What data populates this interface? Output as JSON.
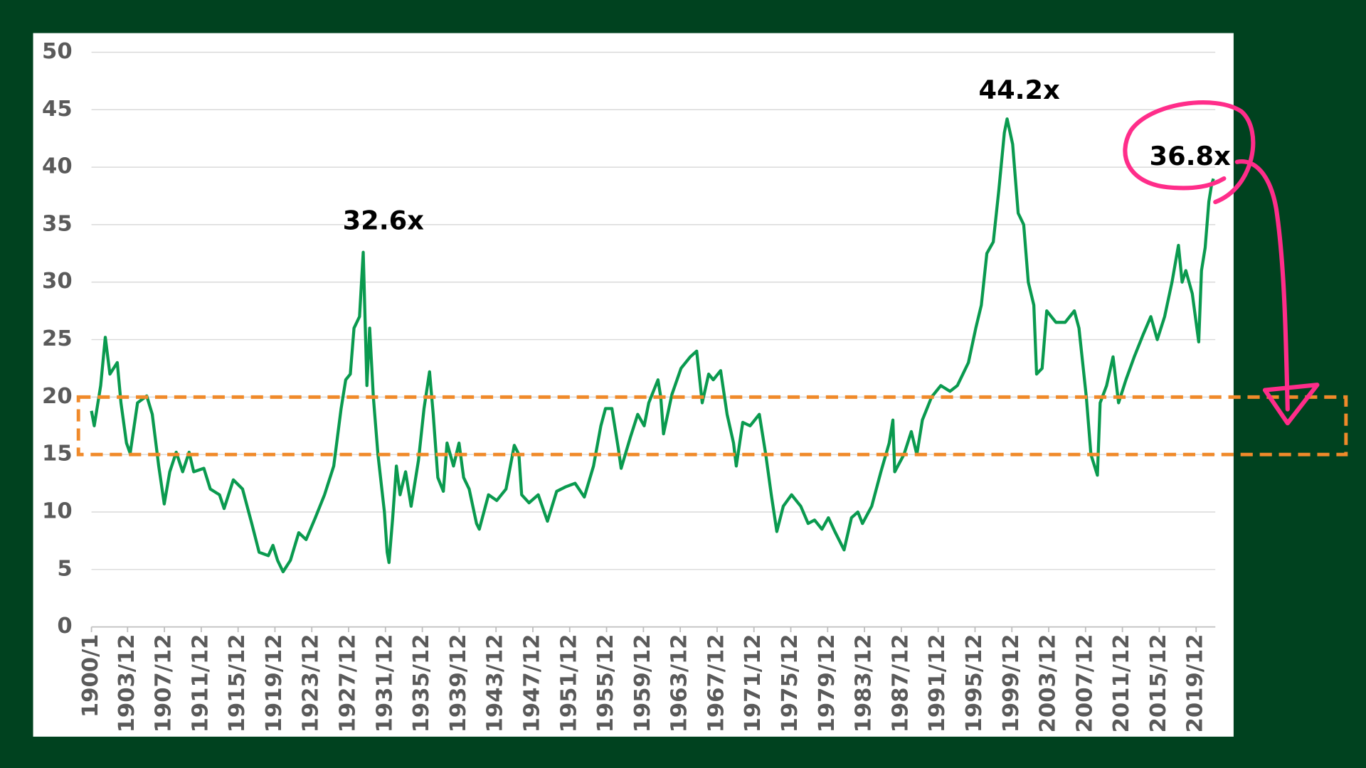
{
  "chart_data": {
    "type": "line",
    "color": "#0a9a4f",
    "grid": true,
    "xlim": [
      1900,
      2022
    ],
    "ylim": [
      0,
      50
    ],
    "yticks": [
      0,
      5,
      10,
      15,
      20,
      25,
      30,
      35,
      40,
      45,
      50
    ],
    "xticks": [
      {
        "value": 1900.0,
        "label": "1900/1"
      },
      {
        "value": 1903.917,
        "label": "1903/12"
      },
      {
        "value": 1907.917,
        "label": "1907/12"
      },
      {
        "value": 1911.917,
        "label": "1911/12"
      },
      {
        "value": 1915.917,
        "label": "1915/12"
      },
      {
        "value": 1919.917,
        "label": "1919/12"
      },
      {
        "value": 1923.917,
        "label": "1923/12"
      },
      {
        "value": 1927.917,
        "label": "1927/12"
      },
      {
        "value": 1931.917,
        "label": "1931/12"
      },
      {
        "value": 1935.917,
        "label": "1935/12"
      },
      {
        "value": 1939.917,
        "label": "1939/12"
      },
      {
        "value": 1943.917,
        "label": "1943/12"
      },
      {
        "value": 1947.917,
        "label": "1947/12"
      },
      {
        "value": 1951.917,
        "label": "1951/12"
      },
      {
        "value": 1955.917,
        "label": "1955/12"
      },
      {
        "value": 1959.917,
        "label": "1959/12"
      },
      {
        "value": 1963.917,
        "label": "1963/12"
      },
      {
        "value": 1967.917,
        "label": "1967/12"
      },
      {
        "value": 1971.917,
        "label": "1971/12"
      },
      {
        "value": 1975.917,
        "label": "1975/12"
      },
      {
        "value": 1979.917,
        "label": "1979/12"
      },
      {
        "value": 1983.917,
        "label": "1983/12"
      },
      {
        "value": 1987.917,
        "label": "1987/12"
      },
      {
        "value": 1991.917,
        "label": "1991/12"
      },
      {
        "value": 1995.917,
        "label": "1995/12"
      },
      {
        "value": 1999.917,
        "label": "1999/12"
      },
      {
        "value": 2003.917,
        "label": "2003/12"
      },
      {
        "value": 2007.917,
        "label": "2007/12"
      },
      {
        "value": 2011.917,
        "label": "2011/12"
      },
      {
        "value": 2015.917,
        "label": "2015/12"
      },
      {
        "value": 2019.917,
        "label": "2019/12"
      }
    ],
    "highlight_band": [
      15,
      20
    ],
    "annotations": [
      "32.6x",
      "44.2x",
      "36.8x"
    ],
    "x": [
      1900.0,
      1900.3,
      1901.0,
      1901.5,
      1902.0,
      1902.8,
      1903.2,
      1903.8,
      1904.2,
      1905.0,
      1906.0,
      1906.6,
      1907.3,
      1907.9,
      1908.5,
      1909.2,
      1909.9,
      1910.6,
      1911.1,
      1912.2,
      1912.9,
      1913.9,
      1914.4,
      1915.4,
      1916.4,
      1917.4,
      1918.2,
      1919.2,
      1919.7,
      1920.2,
      1920.8,
      1921.6,
      1922.5,
      1923.3,
      1924.3,
      1925.3,
      1926.3,
      1927.1,
      1927.6,
      1928.1,
      1928.5,
      1929.1,
      1929.5,
      1929.9,
      1930.2,
      1930.6,
      1931.1,
      1931.8,
      1932.1,
      1932.3,
      1932.7,
      1933.1,
      1933.5,
      1934.1,
      1934.7,
      1935.5,
      1936.1,
      1936.7,
      1937.1,
      1937.6,
      1938.2,
      1938.6,
      1939.3,
      1939.9,
      1940.4,
      1941.0,
      1941.8,
      1942.1,
      1943.1,
      1944.0,
      1945.0,
      1945.9,
      1946.4,
      1946.7,
      1947.5,
      1948.5,
      1949.5,
      1950.5,
      1951.5,
      1952.5,
      1953.5,
      1954.5,
      1955.3,
      1955.8,
      1956.5,
      1957.2,
      1957.5,
      1958.5,
      1959.3,
      1960.0,
      1960.5,
      1961.5,
      1961.8,
      1962.1,
      1963.0,
      1964.0,
      1965.0,
      1965.7,
      1966.3,
      1967.0,
      1967.5,
      1968.3,
      1969.0,
      1969.7,
      1970.0,
      1970.7,
      1971.5,
      1972.5,
      1973.2,
      1973.8,
      1974.4,
      1975.1,
      1976.0,
      1977.0,
      1977.8,
      1978.5,
      1979.3,
      1980.0,
      1980.7,
      1981.7,
      1982.5,
      1983.2,
      1983.7,
      1984.7,
      1985.7,
      1986.6,
      1987.0,
      1987.2,
      1988.2,
      1989.0,
      1989.6,
      1990.2,
      1991.2,
      1992.2,
      1993.2,
      1994.0,
      1995.2,
      1996.0,
      1996.6,
      1997.2,
      1997.9,
      1998.5,
      1999.1,
      1999.4,
      2000.0,
      2000.6,
      2001.2,
      2001.7,
      2002.3,
      2002.6,
      2003.2,
      2003.7,
      2004.7,
      2005.7,
      2006.7,
      2007.2,
      2008.0,
      2008.5,
      2009.2,
      2009.5,
      2010.2,
      2010.9,
      2011.5,
      2012.3,
      2013.2,
      2014.2,
      2015.0,
      2015.7,
      2016.5,
      2017.3,
      2018.0,
      2018.4,
      2018.8,
      2019.5,
      2020.2,
      2020.5,
      2020.9,
      2021.3,
      2021.6,
      2021.8
    ],
    "values": [
      18.8,
      17.5,
      21,
      25.2,
      22,
      23,
      19.5,
      16,
      15.1,
      19.5,
      20.1,
      18.5,
      14,
      10.7,
      13.5,
      15.2,
      13.5,
      15.2,
      13.5,
      13.8,
      12,
      11.5,
      10.3,
      12.8,
      12,
      9,
      6.5,
      6.2,
      7.1,
      5.8,
      4.8,
      5.8,
      8.2,
      7.6,
      9.5,
      11.5,
      14,
      19,
      21.5,
      22,
      26,
      27,
      32.6,
      21,
      26,
      20,
      15,
      10,
      6.5,
      5.6,
      9.5,
      14,
      11.5,
      13.5,
      10.5,
      14.5,
      19,
      22.2,
      18.5,
      13,
      11.8,
      16,
      14,
      16,
      13,
      12,
      9,
      8.5,
      11.5,
      11,
      12,
      15.8,
      15,
      11.5,
      10.8,
      11.5,
      9.2,
      11.8,
      12.2,
      12.5,
      11.3,
      14,
      17.5,
      19,
      19,
      15.5,
      13.8,
      16.5,
      18.5,
      17.5,
      19.5,
      21.5,
      20,
      16.8,
      20.2,
      22.5,
      23.5,
      24,
      19.5,
      22,
      21.5,
      22.3,
      18.5,
      16,
      14,
      17.8,
      17.5,
      18.5,
      15,
      11.5,
      8.3,
      10.5,
      11.5,
      10.5,
      9,
      9.3,
      8.5,
      9.5,
      8.3,
      6.7,
      9.5,
      10,
      9,
      10.5,
      13.5,
      16,
      18,
      13.5,
      15,
      17,
      15,
      18,
      20,
      21,
      20.5,
      21,
      23,
      26,
      28,
      32.5,
      33.5,
      38,
      43,
      44.2,
      42,
      36,
      35,
      30,
      28,
      22,
      22.5,
      27.5,
      26.5,
      26.5,
      27.5,
      26,
      20,
      15,
      13.2,
      19.5,
      21,
      23.5,
      19.5,
      21.5,
      23.5,
      25.5,
      27,
      25,
      27,
      30,
      33.2,
      30,
      31,
      29,
      24.8,
      31,
      33,
      37,
      38.5,
      39
    ]
  }
}
